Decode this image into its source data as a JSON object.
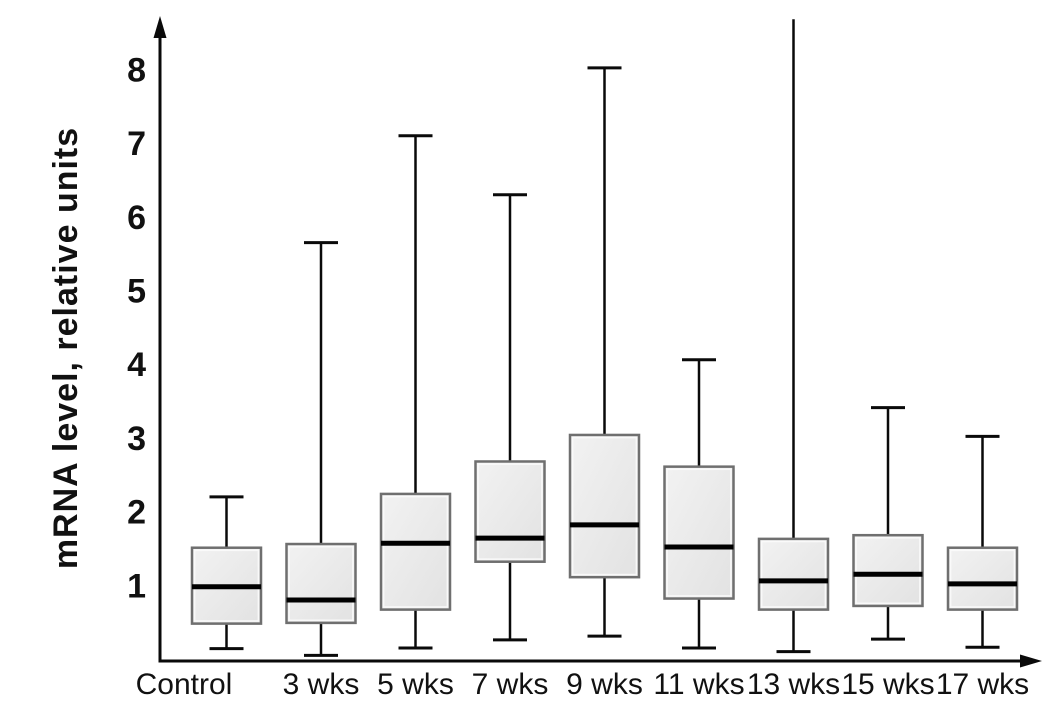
{
  "chart_data": {
    "type": "box",
    "title": "",
    "ylabel": "mRNA level, relative units",
    "xlabel": "",
    "ylim": [
      0,
      8.7
    ],
    "yticks": [
      1,
      2,
      3,
      4,
      5,
      6,
      7,
      8
    ],
    "grid": false,
    "legend": false,
    "categories": [
      "Control",
      "3 wks",
      "5 wks",
      "7 wks",
      "9 wks",
      "11 wks",
      "13 wks",
      "15 wks",
      "17 wks"
    ],
    "series": [
      {
        "category": "Control",
        "whisker_low": 0.14,
        "q1": 0.48,
        "median": 0.98,
        "q3": 1.51,
        "whisker_high": 2.2,
        "whisker_high_capped": true
      },
      {
        "category": "3 wks",
        "whisker_low": 0.05,
        "q1": 0.49,
        "median": 0.8,
        "q3": 1.56,
        "whisker_high": 5.65,
        "whisker_high_capped": true
      },
      {
        "category": "5 wks",
        "whisker_low": 0.15,
        "q1": 0.67,
        "median": 1.57,
        "q3": 2.24,
        "whisker_high": 7.1,
        "whisker_high_capped": true
      },
      {
        "category": "7 wks",
        "whisker_low": 0.26,
        "q1": 1.32,
        "median": 1.64,
        "q3": 2.68,
        "whisker_high": 6.3,
        "whisker_high_capped": true
      },
      {
        "category": "9 wks",
        "whisker_low": 0.31,
        "q1": 1.11,
        "median": 1.82,
        "q3": 3.04,
        "whisker_high": 8.02,
        "whisker_high_capped": true
      },
      {
        "category": "11 wks",
        "whisker_low": 0.15,
        "q1": 0.82,
        "median": 1.52,
        "q3": 2.61,
        "whisker_high": 4.06,
        "whisker_high_capped": true
      },
      {
        "category": "13 wks",
        "whisker_low": 0.1,
        "q1": 0.67,
        "median": 1.06,
        "q3": 1.63,
        "whisker_high": 8.68,
        "whisker_high_capped": false
      },
      {
        "category": "15 wks",
        "whisker_low": 0.27,
        "q1": 0.72,
        "median": 1.15,
        "q3": 1.68,
        "whisker_high": 3.41,
        "whisker_high_capped": true
      },
      {
        "category": "17 wks",
        "whisker_low": 0.16,
        "q1": 0.67,
        "median": 1.02,
        "q3": 1.51,
        "whisker_high": 3.02,
        "whisker_high_capped": true
      }
    ],
    "colors": {
      "box_fill": "#e8e8e8",
      "box_fill_light": "#f2f2f2",
      "box_border": "#6f6f6f",
      "box_inner_highlight": "#fbfbfb",
      "median": "#000000",
      "whisker": "#0a0a0a",
      "axis": "#0a0a0a",
      "text": "#111111"
    }
  }
}
